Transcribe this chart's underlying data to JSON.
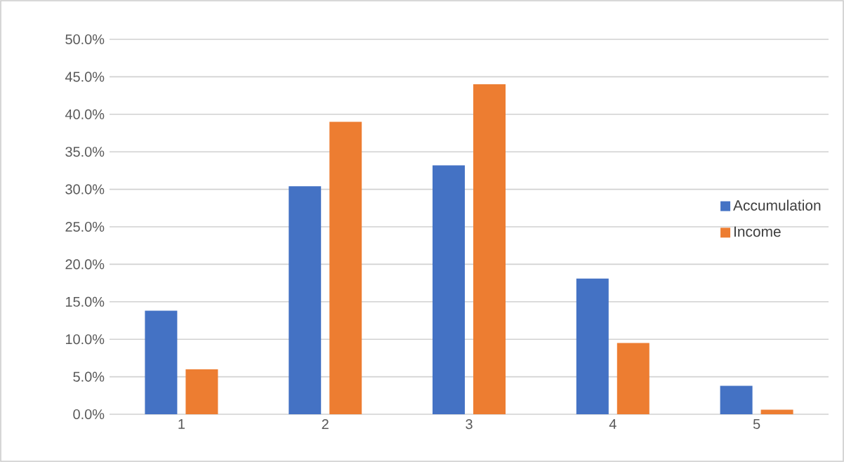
{
  "chart_data": {
    "type": "bar",
    "categories": [
      "1",
      "2",
      "3",
      "4",
      "5"
    ],
    "series": [
      {
        "name": "Accumulation",
        "color": "#4472c4",
        "values": [
          13.8,
          30.4,
          33.2,
          18.1,
          3.8
        ]
      },
      {
        "name": "Income",
        "color": "#ed7d31",
        "values": [
          6.0,
          39.0,
          44.0,
          9.5,
          0.6
        ]
      }
    ],
    "ylim": [
      0,
      50
    ],
    "yticks": [
      {
        "value": 0,
        "label": "0.0%"
      },
      {
        "value": 5,
        "label": "5.0%"
      },
      {
        "value": 10,
        "label": "10.0%"
      },
      {
        "value": 15,
        "label": "15.0%"
      },
      {
        "value": 20,
        "label": "20.0%"
      },
      {
        "value": 25,
        "label": "25.0%"
      },
      {
        "value": 30,
        "label": "30.0%"
      },
      {
        "value": 35,
        "label": "35.0%"
      },
      {
        "value": 40,
        "label": "40.0%"
      },
      {
        "value": 45,
        "label": "45.0%"
      },
      {
        "value": 50,
        "label": "50.0%"
      }
    ],
    "grid": "y",
    "legend": "right"
  }
}
